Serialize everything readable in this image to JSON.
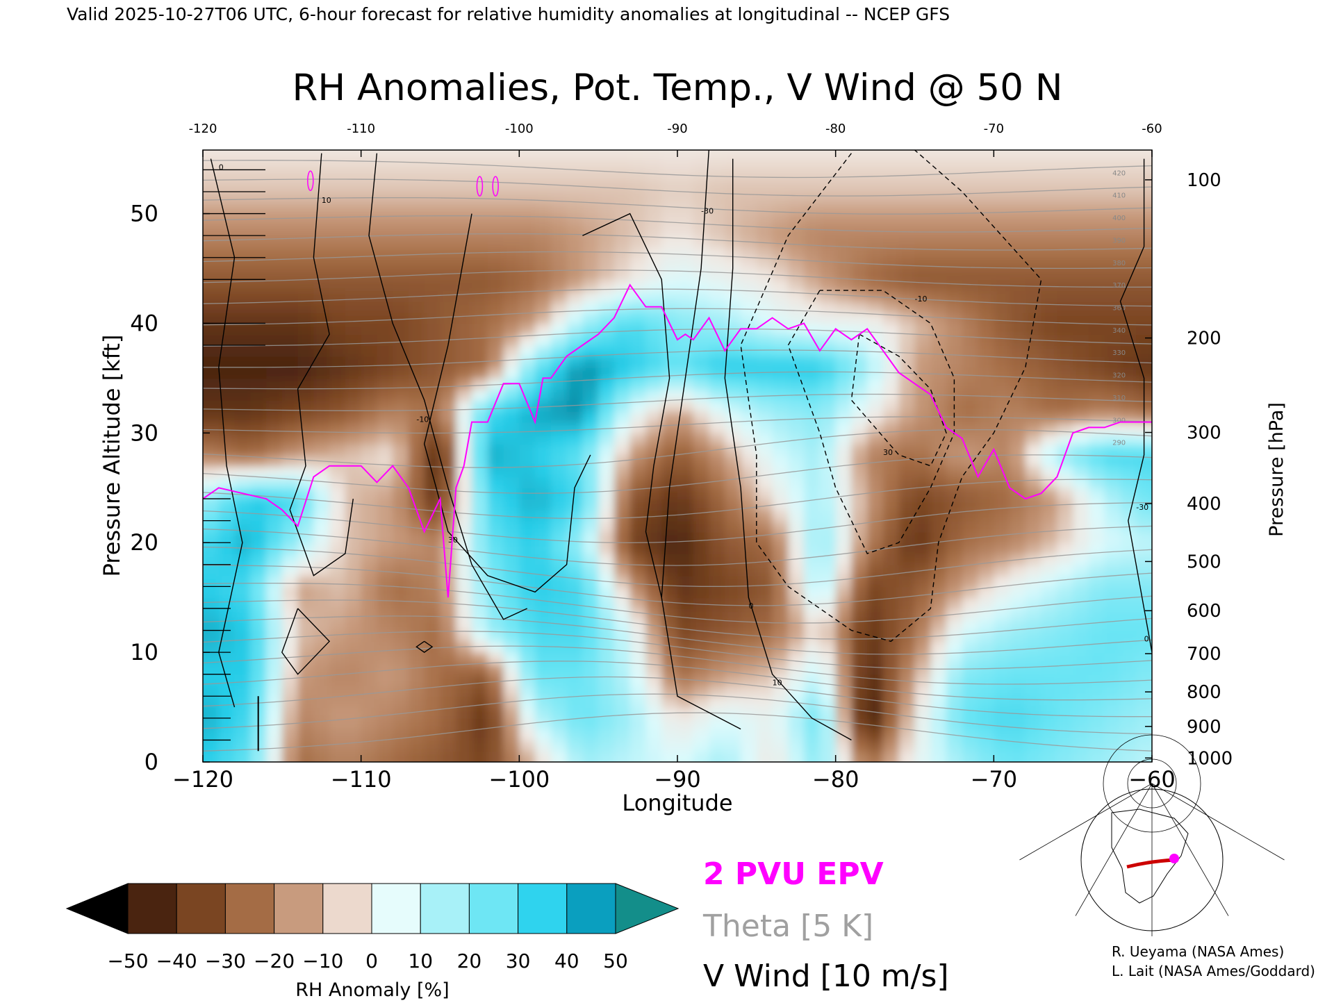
{
  "header": {
    "valid_line": "Valid 2025-10-27T06 UTC, 6-hour forecast for relative humidity anomalies at longitudinal -- NCEP GFS"
  },
  "chart_data": {
    "type": "heatmap",
    "title": "RH Anomalies, Pot. Temp., V Wind @ 50 N",
    "xlabel": "Longitude",
    "ylabel": "Pressure Altitude [kft]",
    "y2label": "Pressure [hPa]",
    "xlim": [
      -120,
      -60
    ],
    "ylim": [
      0,
      55.8
    ],
    "xticks": [
      -120,
      -110,
      -100,
      -90,
      -80,
      -70,
      -60
    ],
    "xtick_labels": [
      "−120",
      "−110",
      "−100",
      "−90",
      "−80",
      "−70",
      "−60"
    ],
    "top_xtick_labels": [
      "-120",
      "-110",
      "-100",
      "-90",
      "-80",
      "-70",
      "-60"
    ],
    "yticks": [
      0,
      10,
      20,
      30,
      40,
      50
    ],
    "pressure_ticks": [
      {
        "p": 100,
        "label": "100"
      },
      {
        "p": 200,
        "label": "200"
      },
      {
        "p": 300,
        "label": "300"
      },
      {
        "p": 400,
        "label": "400"
      },
      {
        "p": 500,
        "label": "500"
      },
      {
        "p": 600,
        "label": "600"
      },
      {
        "p": 700,
        "label": "700"
      },
      {
        "p": 800,
        "label": "800"
      },
      {
        "p": 900,
        "label": "900"
      },
      {
        "p": 1000,
        "label": "1000"
      }
    ],
    "rh_field": {
      "x": [
        -120,
        -117,
        -114,
        -111,
        -108,
        -105,
        -102,
        -99,
        -96,
        -93,
        -90,
        -87,
        -84,
        -81,
        -78,
        -75,
        -72,
        -69,
        -66,
        -63,
        -60
      ],
      "y": [
        0,
        4,
        8,
        12,
        16,
        20,
        24,
        28,
        32,
        36,
        40,
        44,
        48,
        52,
        56
      ],
      "values": [
        [
          40,
          30,
          -20,
          -15,
          -20,
          -25,
          -30,
          -5,
          20,
          15,
          10,
          20,
          0,
          25,
          -20,
          5,
          20,
          30,
          25,
          20,
          15
        ],
        [
          45,
          35,
          -15,
          -10,
          -15,
          -20,
          -35,
          15,
          30,
          20,
          0,
          10,
          5,
          30,
          -45,
          0,
          30,
          35,
          30,
          25,
          20
        ],
        [
          40,
          40,
          -10,
          -15,
          -10,
          -20,
          -25,
          30,
          30,
          15,
          -20,
          -10,
          -5,
          15,
          -40,
          -10,
          25,
          30,
          30,
          30,
          25
        ],
        [
          45,
          40,
          -5,
          -10,
          -15,
          -20,
          20,
          35,
          35,
          10,
          -30,
          -25,
          -20,
          0,
          -35,
          -20,
          10,
          20,
          25,
          30,
          30
        ],
        [
          40,
          35,
          -10,
          -5,
          -20,
          -15,
          25,
          40,
          35,
          -10,
          -35,
          -30,
          -25,
          20,
          -30,
          -25,
          -10,
          5,
          15,
          25,
          25
        ],
        [
          35,
          45,
          20,
          -5,
          -10,
          -15,
          30,
          40,
          20,
          -30,
          -40,
          -25,
          -20,
          25,
          -15,
          -35,
          -20,
          -15,
          -5,
          10,
          15
        ],
        [
          20,
          40,
          35,
          -5,
          -10,
          -35,
          35,
          45,
          35,
          -25,
          -35,
          -20,
          0,
          20,
          -10,
          -30,
          -25,
          -20,
          -10,
          15,
          30
        ],
        [
          -15,
          -20,
          -10,
          -5,
          0,
          -40,
          45,
          40,
          30,
          -10,
          -25,
          -10,
          10,
          20,
          -15,
          -20,
          -10,
          -15,
          20,
          35,
          35
        ],
        [
          -35,
          -35,
          -30,
          -25,
          -15,
          -20,
          35,
          45,
          50,
          10,
          -10,
          10,
          20,
          25,
          5,
          -10,
          -20,
          -15,
          -20,
          -15,
          -20
        ],
        [
          -40,
          -40,
          -40,
          -35,
          -30,
          -25,
          -20,
          30,
          50,
          40,
          30,
          40,
          40,
          40,
          20,
          -10,
          -15,
          -20,
          -25,
          -30,
          -35
        ],
        [
          -35,
          -35,
          -35,
          -30,
          -30,
          -25,
          -20,
          -10,
          20,
          35,
          25,
          20,
          10,
          5,
          5,
          -5,
          -15,
          -25,
          -30,
          -30,
          -30
        ],
        [
          -25,
          -25,
          -25,
          -25,
          -25,
          -25,
          -25,
          -20,
          -10,
          0,
          10,
          5,
          0,
          -10,
          -20,
          -25,
          -25,
          -25,
          -25,
          -25,
          -25
        ],
        [
          -15,
          -15,
          -15,
          -15,
          -15,
          -15,
          -15,
          -15,
          -10,
          -5,
          0,
          -5,
          -10,
          -15,
          -15,
          -15,
          -15,
          -15,
          -15,
          -15,
          -15
        ],
        [
          -5,
          -5,
          -5,
          -5,
          -5,
          -5,
          -5,
          -5,
          -5,
          -5,
          -3,
          -5,
          -5,
          -5,
          -5,
          -5,
          -5,
          -5,
          -5,
          -5,
          -5
        ],
        [
          0,
          0,
          0,
          0,
          0,
          0,
          0,
          0,
          0,
          0,
          0,
          0,
          0,
          0,
          0,
          0,
          0,
          0,
          0,
          0,
          0
        ]
      ]
    },
    "epv_2pvu_line": {
      "name": "2 PVU EPV",
      "x": [
        -120,
        -119,
        -117.5,
        -116,
        -115,
        -114,
        -113,
        -112,
        -110,
        -109,
        -108,
        -107,
        -106,
        -105,
        -104.5,
        -104,
        -103.5,
        -103,
        -102,
        -101,
        -100,
        -99,
        -98.5,
        -98,
        -97,
        -96,
        -95,
        -94,
        -93,
        -92,
        -91,
        -90,
        -89.5,
        -89,
        -88,
        -87,
        -86,
        -85,
        -84,
        -83,
        -82,
        -81,
        -80,
        -79,
        -78,
        -77,
        -76,
        -75,
        -74,
        -73,
        -72,
        -71,
        -70,
        -69,
        -68,
        -67,
        -66,
        -65,
        -64,
        -63,
        -62,
        -61,
        -60
      ],
      "y": [
        24,
        25,
        24.5,
        24,
        23,
        21.5,
        26,
        27,
        27,
        25.5,
        27,
        25,
        21,
        24,
        15,
        25,
        27,
        31,
        31,
        34.5,
        34.5,
        31,
        35,
        35,
        37,
        38,
        39,
        40.5,
        43.5,
        41.5,
        41.5,
        38.5,
        39,
        38.5,
        40.5,
        37.5,
        39.5,
        39.5,
        40.5,
        39.5,
        40,
        37.5,
        39.5,
        38.5,
        39.5,
        37.5,
        35.5,
        34.5,
        33.5,
        30.5,
        29.5,
        26,
        28.5,
        25,
        24,
        24.5,
        26,
        30,
        30.5,
        30.5,
        31,
        31,
        31
      ]
    },
    "legend": [
      {
        "label": "2 PVU EPV",
        "color": "#ff00ff"
      },
      {
        "label": "Theta [5 K]",
        "color": "#a0a0a0"
      },
      {
        "label": "V Wind [10 m/s]",
        "color": "#000000"
      }
    ],
    "colorbar": {
      "label": "RH Anomaly [%]",
      "ticks": [
        "−50",
        "−40",
        "−30",
        "−20",
        "−10",
        "0",
        "10",
        "20",
        "30",
        "40",
        "50"
      ],
      "colors": [
        "#000000",
        "#4a2410",
        "#7a4522",
        "#a46c45",
        "#c89b7e",
        "#ecd9cd",
        "#e6fcfc",
        "#a8f1f8",
        "#6ee6f4",
        "#2fd3ee",
        "#0a9fbf",
        "#138e8a"
      ]
    },
    "theta_labels": [
      "420",
      "410",
      "400",
      "390",
      "380",
      "370",
      "360",
      "340",
      "330",
      "320",
      "310",
      "300",
      "290"
    ],
    "wind_labels": [
      "0",
      "10",
      "-10",
      "30",
      "-30"
    ]
  },
  "inset_map": {
    "highlight_color": "#cc0000",
    "marker_color": "#ff00ff"
  },
  "credits": {
    "line1": "R. Ueyama (NASA Ames)",
    "line2": "L. Lait (NASA Ames/Goddard)"
  }
}
